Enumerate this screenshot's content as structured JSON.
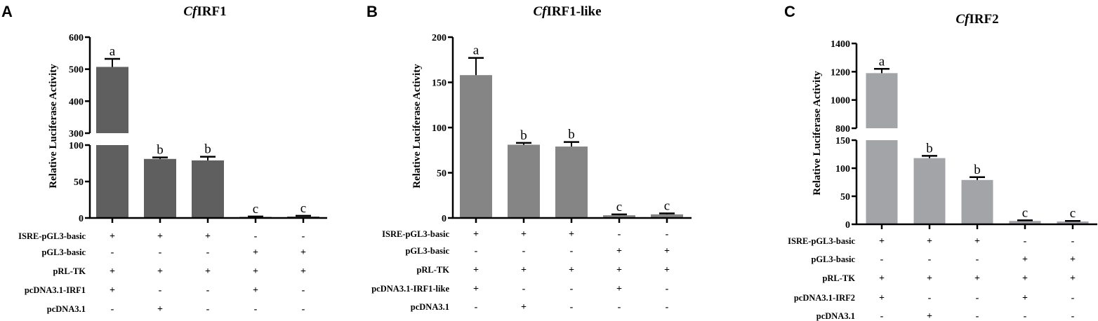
{
  "chart_data": [
    {
      "type": "bar",
      "panel_label": "A",
      "title_italic": "Cf",
      "title_rest": "IRF1",
      "ylabel": "Relative Luciferase Activity",
      "broken_axis": true,
      "axis_segments": [
        {
          "range": [
            0,
            100
          ],
          "ticks": [
            0,
            50,
            100
          ]
        },
        {
          "range": [
            300,
            600
          ],
          "ticks": [
            300,
            400,
            500,
            600
          ]
        }
      ],
      "bar_color": "#5f5f5f",
      "values": [
        507,
        81,
        79,
        1.5,
        2
      ],
      "errors": [
        25,
        2,
        5,
        0.5,
        1
      ],
      "significance": [
        "a",
        "b",
        "b",
        "c",
        "c"
      ],
      "conditions": [
        {
          "label": "ISRE-pGL3-basic",
          "marks": [
            "+",
            "+",
            "+",
            "-",
            "-"
          ]
        },
        {
          "label": "pGL3-basic",
          "marks": [
            "-",
            "-",
            "-",
            "+",
            "+"
          ]
        },
        {
          "label": "pRL-TK",
          "marks": [
            "+",
            "+",
            "+",
            "+",
            "+"
          ]
        },
        {
          "label": "pcDNA3.1-IRF1",
          "marks": [
            "+",
            "-",
            "-",
            "+",
            "-"
          ]
        },
        {
          "label": "pcDNA3.1",
          "marks": [
            "-",
            "+",
            "-",
            "-",
            "-"
          ]
        }
      ]
    },
    {
      "type": "bar",
      "panel_label": "B",
      "title_italic": "Cf",
      "title_rest": "IRF1-like",
      "ylabel": "Relative Luciferase Activity",
      "broken_axis": false,
      "axis_segments": [
        {
          "range": [
            0,
            200
          ],
          "ticks": [
            0,
            50,
            100,
            150,
            200
          ]
        }
      ],
      "bar_color": "#858585",
      "values": [
        158,
        81,
        79,
        3,
        4
      ],
      "errors": [
        19,
        2,
        5,
        1,
        1
      ],
      "significance": [
        "a",
        "b",
        "b",
        "c",
        "c"
      ],
      "conditions": [
        {
          "label": "ISRE-pGL3-basic",
          "marks": [
            "+",
            "+",
            "+",
            "-",
            "-"
          ]
        },
        {
          "label": "pGL3-basic",
          "marks": [
            "-",
            "-",
            "-",
            "+",
            "+"
          ]
        },
        {
          "label": "pRL-TK",
          "marks": [
            "+",
            "+",
            "+",
            "+",
            "+"
          ]
        },
        {
          "label": "pcDNA3.1-IRF1-like",
          "marks": [
            "+",
            "-",
            "-",
            "+",
            "-"
          ]
        },
        {
          "label": "pcDNA3.1",
          "marks": [
            "-",
            "+",
            "-",
            "-",
            "-"
          ]
        }
      ]
    },
    {
      "type": "bar",
      "panel_label": "C",
      "title_italic": "Cf",
      "title_rest": "IRF2",
      "ylabel": "Relative Luciferase Activity",
      "broken_axis": true,
      "axis_segments": [
        {
          "range": [
            0,
            150
          ],
          "ticks": [
            0,
            50,
            100,
            150
          ]
        },
        {
          "range": [
            800,
            1400
          ],
          "ticks": [
            800,
            1000,
            1200,
            1400
          ]
        }
      ],
      "bar_color": "#a3a4a8",
      "values": [
        1190,
        118,
        79,
        6,
        5
      ],
      "errors": [
        30,
        4,
        5,
        1,
        1
      ],
      "significance": [
        "a",
        "b",
        "b",
        "c",
        "c"
      ],
      "conditions": [
        {
          "label": "ISRE-pGL3-basic",
          "marks": [
            "+",
            "+",
            "+",
            "-",
            "-"
          ]
        },
        {
          "label": "pGL3-basic",
          "marks": [
            "-",
            "-",
            "-",
            "+",
            "+"
          ]
        },
        {
          "label": "pRL-TK",
          "marks": [
            "+",
            "+",
            "+",
            "+",
            "+"
          ]
        },
        {
          "label": "pcDNA3.1-IRF2",
          "marks": [
            "+",
            "-",
            "-",
            "+",
            "-"
          ]
        },
        {
          "label": "pcDNA3.1",
          "marks": [
            "-",
            "+",
            "-",
            "-",
            "-"
          ]
        }
      ]
    }
  ]
}
